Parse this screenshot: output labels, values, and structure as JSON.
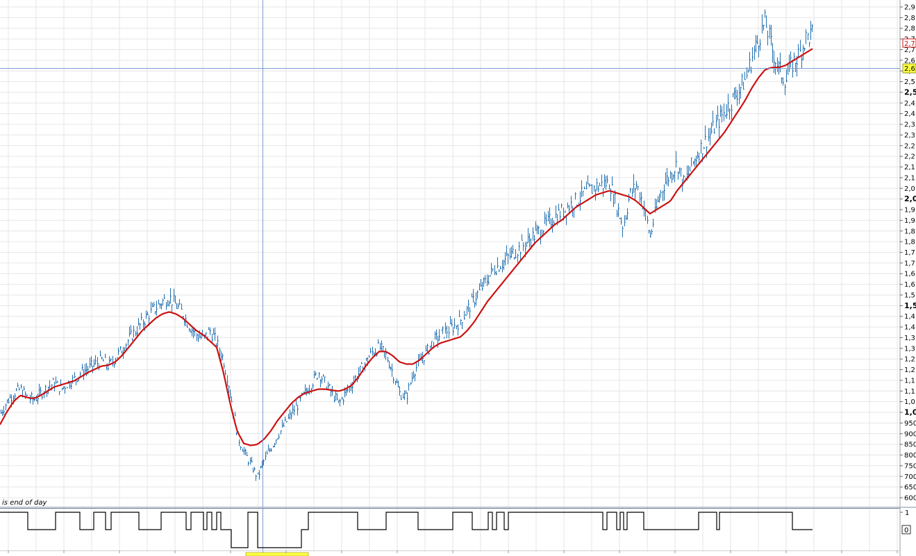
{
  "main_pane": {
    "price_axis_tags": {
      "current_price": "2,7",
      "crosshair_price": "2,6"
    }
  },
  "indicator_pane": {
    "status_text": "is end of day",
    "axis_labels": [
      "1",
      "0"
    ]
  },
  "colors": {
    "background": "#ffffff",
    "grid": "#e6e6e6",
    "price_bars": "#1f6fb0",
    "moving_average": "#cc1111",
    "crosshair": "#7a9ccf",
    "indicator_line": "#000000",
    "highlight_tag": "#ffff44"
  },
  "chart_data": [
    {
      "type": "line",
      "subtype": "ohlc-bars-with-moving-average",
      "title": "",
      "xlabel": "",
      "ylabel": "",
      "x_axis_labels": [],
      "y_ticks": [
        600,
        650,
        700,
        750,
        800,
        850,
        900,
        950,
        "1,0",
        "1,0",
        "1,1",
        "1,1",
        "1,2",
        "1,2",
        "1,3",
        "1,3",
        "1,4",
        "1,4",
        "1,5",
        "1,5",
        "1,6",
        "1,6",
        "1,7",
        "1,7",
        "1,8",
        "1,8",
        "1,9",
        "1,9",
        "2,0",
        "2,0",
        "2,1",
        "2,1",
        "2,2",
        "2,2",
        "2,3",
        "2,3",
        "2,4",
        "2,4",
        "2,5",
        "2,5",
        "2,6",
        "2,6",
        "2,7",
        "2,7",
        "2,8",
        "2,8",
        "2,9"
      ],
      "bold_ticks": [
        "1,0",
        "1,5",
        "2,0",
        "2,5"
      ],
      "ylim": [
        600,
        2950
      ],
      "grid": true,
      "legend": "none",
      "series": [
        {
          "values": [
            1000,
            1060,
            1100,
            1120,
            1080,
            1070,
            1100,
            1130,
            1150,
            1120,
            1150,
            1170,
            1200,
            1220,
            1240,
            1260,
            1230,
            1270,
            1310,
            1360,
            1400,
            1440,
            1480,
            1510,
            1540,
            1560,
            1520,
            1480,
            1420,
            1380,
            1360,
            1400,
            1340,
            1260,
            1100,
            900,
            820,
            760,
            700,
            780,
            840,
            900,
            950,
            1000,
            1050,
            1100,
            1150,
            1200,
            1150,
            1100,
            1050,
            1100,
            1150,
            1200,
            1250,
            1300,
            1320,
            1280,
            1200,
            1100,
            1080,
            1200,
            1250,
            1300,
            1350,
            1380,
            1400,
            1420,
            1450,
            1500,
            1550,
            1600,
            1650,
            1700,
            1720,
            1750,
            1780,
            1800,
            1830,
            1860,
            1890,
            1920,
            1950,
            1970,
            2000,
            2020,
            2050,
            2070,
            2090,
            2100,
            2110,
            2000,
            1900,
            2050,
            2100,
            2000,
            1850,
            2000,
            2100,
            2150,
            2200,
            2100,
            2180,
            2250,
            2300,
            2350,
            2400,
            2450,
            2500,
            2550,
            2600,
            2700,
            2800,
            2880,
            2750,
            2650,
            2600,
            2680,
            2720,
            2800,
            2820
          ]
        },
        {
          "values": [
            950,
            1010,
            1060,
            1090,
            1080,
            1075,
            1090,
            1110,
            1130,
            1140,
            1150,
            1160,
            1180,
            1200,
            1215,
            1230,
            1235,
            1250,
            1280,
            1320,
            1360,
            1400,
            1430,
            1460,
            1480,
            1490,
            1480,
            1460,
            1430,
            1400,
            1380,
            1350,
            1320,
            1200,
            1050,
            920,
            860,
            850,
            855,
            880,
            920,
            970,
            1010,
            1050,
            1080,
            1100,
            1110,
            1120,
            1120,
            1115,
            1110,
            1120,
            1140,
            1180,
            1230,
            1270,
            1300,
            1300,
            1280,
            1250,
            1240,
            1240,
            1260,
            1290,
            1320,
            1340,
            1350,
            1360,
            1370,
            1400,
            1440,
            1490,
            1540,
            1580,
            1620,
            1660,
            1700,
            1740,
            1780,
            1820,
            1850,
            1880,
            1910,
            1930,
            1960,
            1990,
            2010,
            2030,
            2050,
            2060,
            2070,
            2060,
            2050,
            2040,
            2020,
            1990,
            1960,
            1980,
            2000,
            2020,
            2070,
            2110,
            2150,
            2190,
            2230,
            2270,
            2310,
            2350,
            2400,
            2450,
            2500,
            2560,
            2610,
            2650,
            2660,
            2660,
            2670,
            2690,
            2710,
            2730,
            2750
          ]
        }
      ]
    },
    {
      "type": "line",
      "subtype": "step",
      "title": "is end of day",
      "xlabel": "",
      "ylabel": "",
      "y_ticks": [
        1,
        0
      ],
      "ylim": [
        -1,
        1
      ],
      "series": [
        {
          "steps": [
            [
              0,
              1
            ],
            [
              40,
              0
            ],
            [
              80,
              1
            ],
            [
              115,
              0
            ],
            [
              135,
              1
            ],
            [
              152,
              0
            ],
            [
              160,
              1
            ],
            [
              200,
              0
            ],
            [
              232,
              1
            ],
            [
              268,
              0
            ],
            [
              275,
              1
            ],
            [
              293,
              0
            ],
            [
              298,
              1
            ],
            [
              305,
              0
            ],
            [
              312,
              1
            ],
            [
              318,
              0
            ],
            [
              333,
              -1
            ],
            [
              357,
              1
            ],
            [
              371,
              -1
            ],
            [
              434,
              0
            ],
            [
              444,
              1
            ],
            [
              515,
              0
            ],
            [
              556,
              1
            ],
            [
              602,
              0
            ],
            [
              652,
              1
            ],
            [
              680,
              0
            ],
            [
              703,
              1
            ],
            [
              709,
              0
            ],
            [
              715,
              1
            ],
            [
              726,
              0
            ],
            [
              732,
              1
            ],
            [
              868,
              0
            ],
            [
              874,
              1
            ],
            [
              888,
              0
            ],
            [
              893,
              1
            ],
            [
              898,
              0
            ],
            [
              903,
              1
            ],
            [
              927,
              0
            ],
            [
              1006,
              1
            ],
            [
              1032,
              0
            ],
            [
              1036,
              1
            ],
            [
              1141,
              0
            ],
            [
              1170,
              0
            ]
          ]
        }
      ]
    }
  ]
}
